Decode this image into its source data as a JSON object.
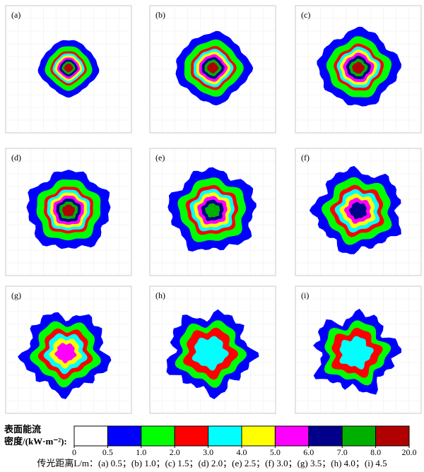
{
  "panels": [
    {
      "label": "(a)"
    },
    {
      "label": "(b)"
    },
    {
      "label": "(c)"
    },
    {
      "label": "(d)"
    },
    {
      "label": "(e)"
    },
    {
      "label": "(f)"
    },
    {
      "label": "(g)"
    },
    {
      "label": "(h)"
    },
    {
      "label": "(i)"
    }
  ],
  "colorbar": {
    "title_line1": "表面能流",
    "title_line2": "密度/(kW·m⁻²):",
    "colors": [
      "#ffffff",
      "#0000ff",
      "#00ff00",
      "#ff0000",
      "#00ffff",
      "#ffff00",
      "#ff00ff",
      "#00008b",
      "#00b000",
      "#b00000"
    ],
    "ticks": [
      0,
      0.5,
      {
        "value": 1,
        "label": "1.0"
      },
      {
        "value": 2,
        "label": "2.0"
      },
      {
        "value": 3,
        "label": "3.0"
      },
      {
        "value": 4,
        "label": "4.0"
      },
      {
        "value": 5,
        "label": "5.0"
      },
      {
        "value": 6,
        "label": "6.0"
      },
      {
        "value": 7,
        "label": "7.0"
      },
      {
        "value": 8,
        "label": "8.0"
      },
      {
        "value": 20,
        "label": "20.0"
      }
    ]
  },
  "caption": "传光距离L/m：(a) 0.5；(b) 1.0；(c) 1.5；(d) 2.0；(e) 2.5；(f) 3.0；(g) 3.5；(h) 4.0；(i) 4.5"
}
